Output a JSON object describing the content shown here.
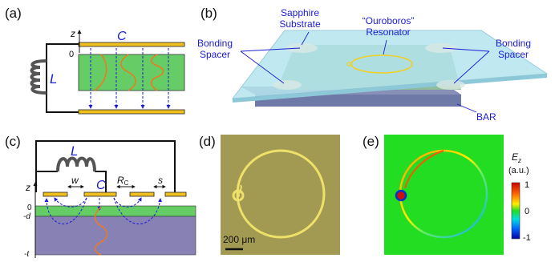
{
  "panels": {
    "a": {
      "label": "(a)",
      "inductor": "L",
      "capacitor": "C",
      "axis_z": "z",
      "axis_zero": "0"
    },
    "b": {
      "label": "(b)",
      "substrate_line1": "Sapphire",
      "substrate_line2": "Substrate",
      "resonator_line1": "“Ouroboros”",
      "resonator_line2": "Resonator",
      "spacer_left_line1": "Bonding",
      "spacer_left_line2": "Spacer",
      "spacer_right_line1": "Bonding",
      "spacer_right_line2": "Spacer",
      "bar": "BAR"
    },
    "c": {
      "label": "(c)",
      "inductor": "L",
      "capacitor": "C",
      "w": "w",
      "rc": "R",
      "rc_sub": "C",
      "s": "s",
      "axis_z": "z",
      "tick_0": "0",
      "tick_d": "-d",
      "tick_t": "-t"
    },
    "d": {
      "label": "(d)",
      "scalebar": "200 μm"
    },
    "e": {
      "label": "(e)",
      "colorbar_title": "E",
      "colorbar_title_sub": "z",
      "colorbar_unit": "(a.u.)",
      "tick_1": "1",
      "tick_0": "0",
      "tick_m1": "-1"
    }
  },
  "colors": {
    "gold": "#f0c020",
    "dielectric_green": "#66cc66",
    "substrate_purple": "#8882b4",
    "field_blue": "#1c1cd6",
    "wave_orange": "#f07820",
    "sapphire": "#b4e4ee",
    "sim_green": "#22dd22"
  }
}
